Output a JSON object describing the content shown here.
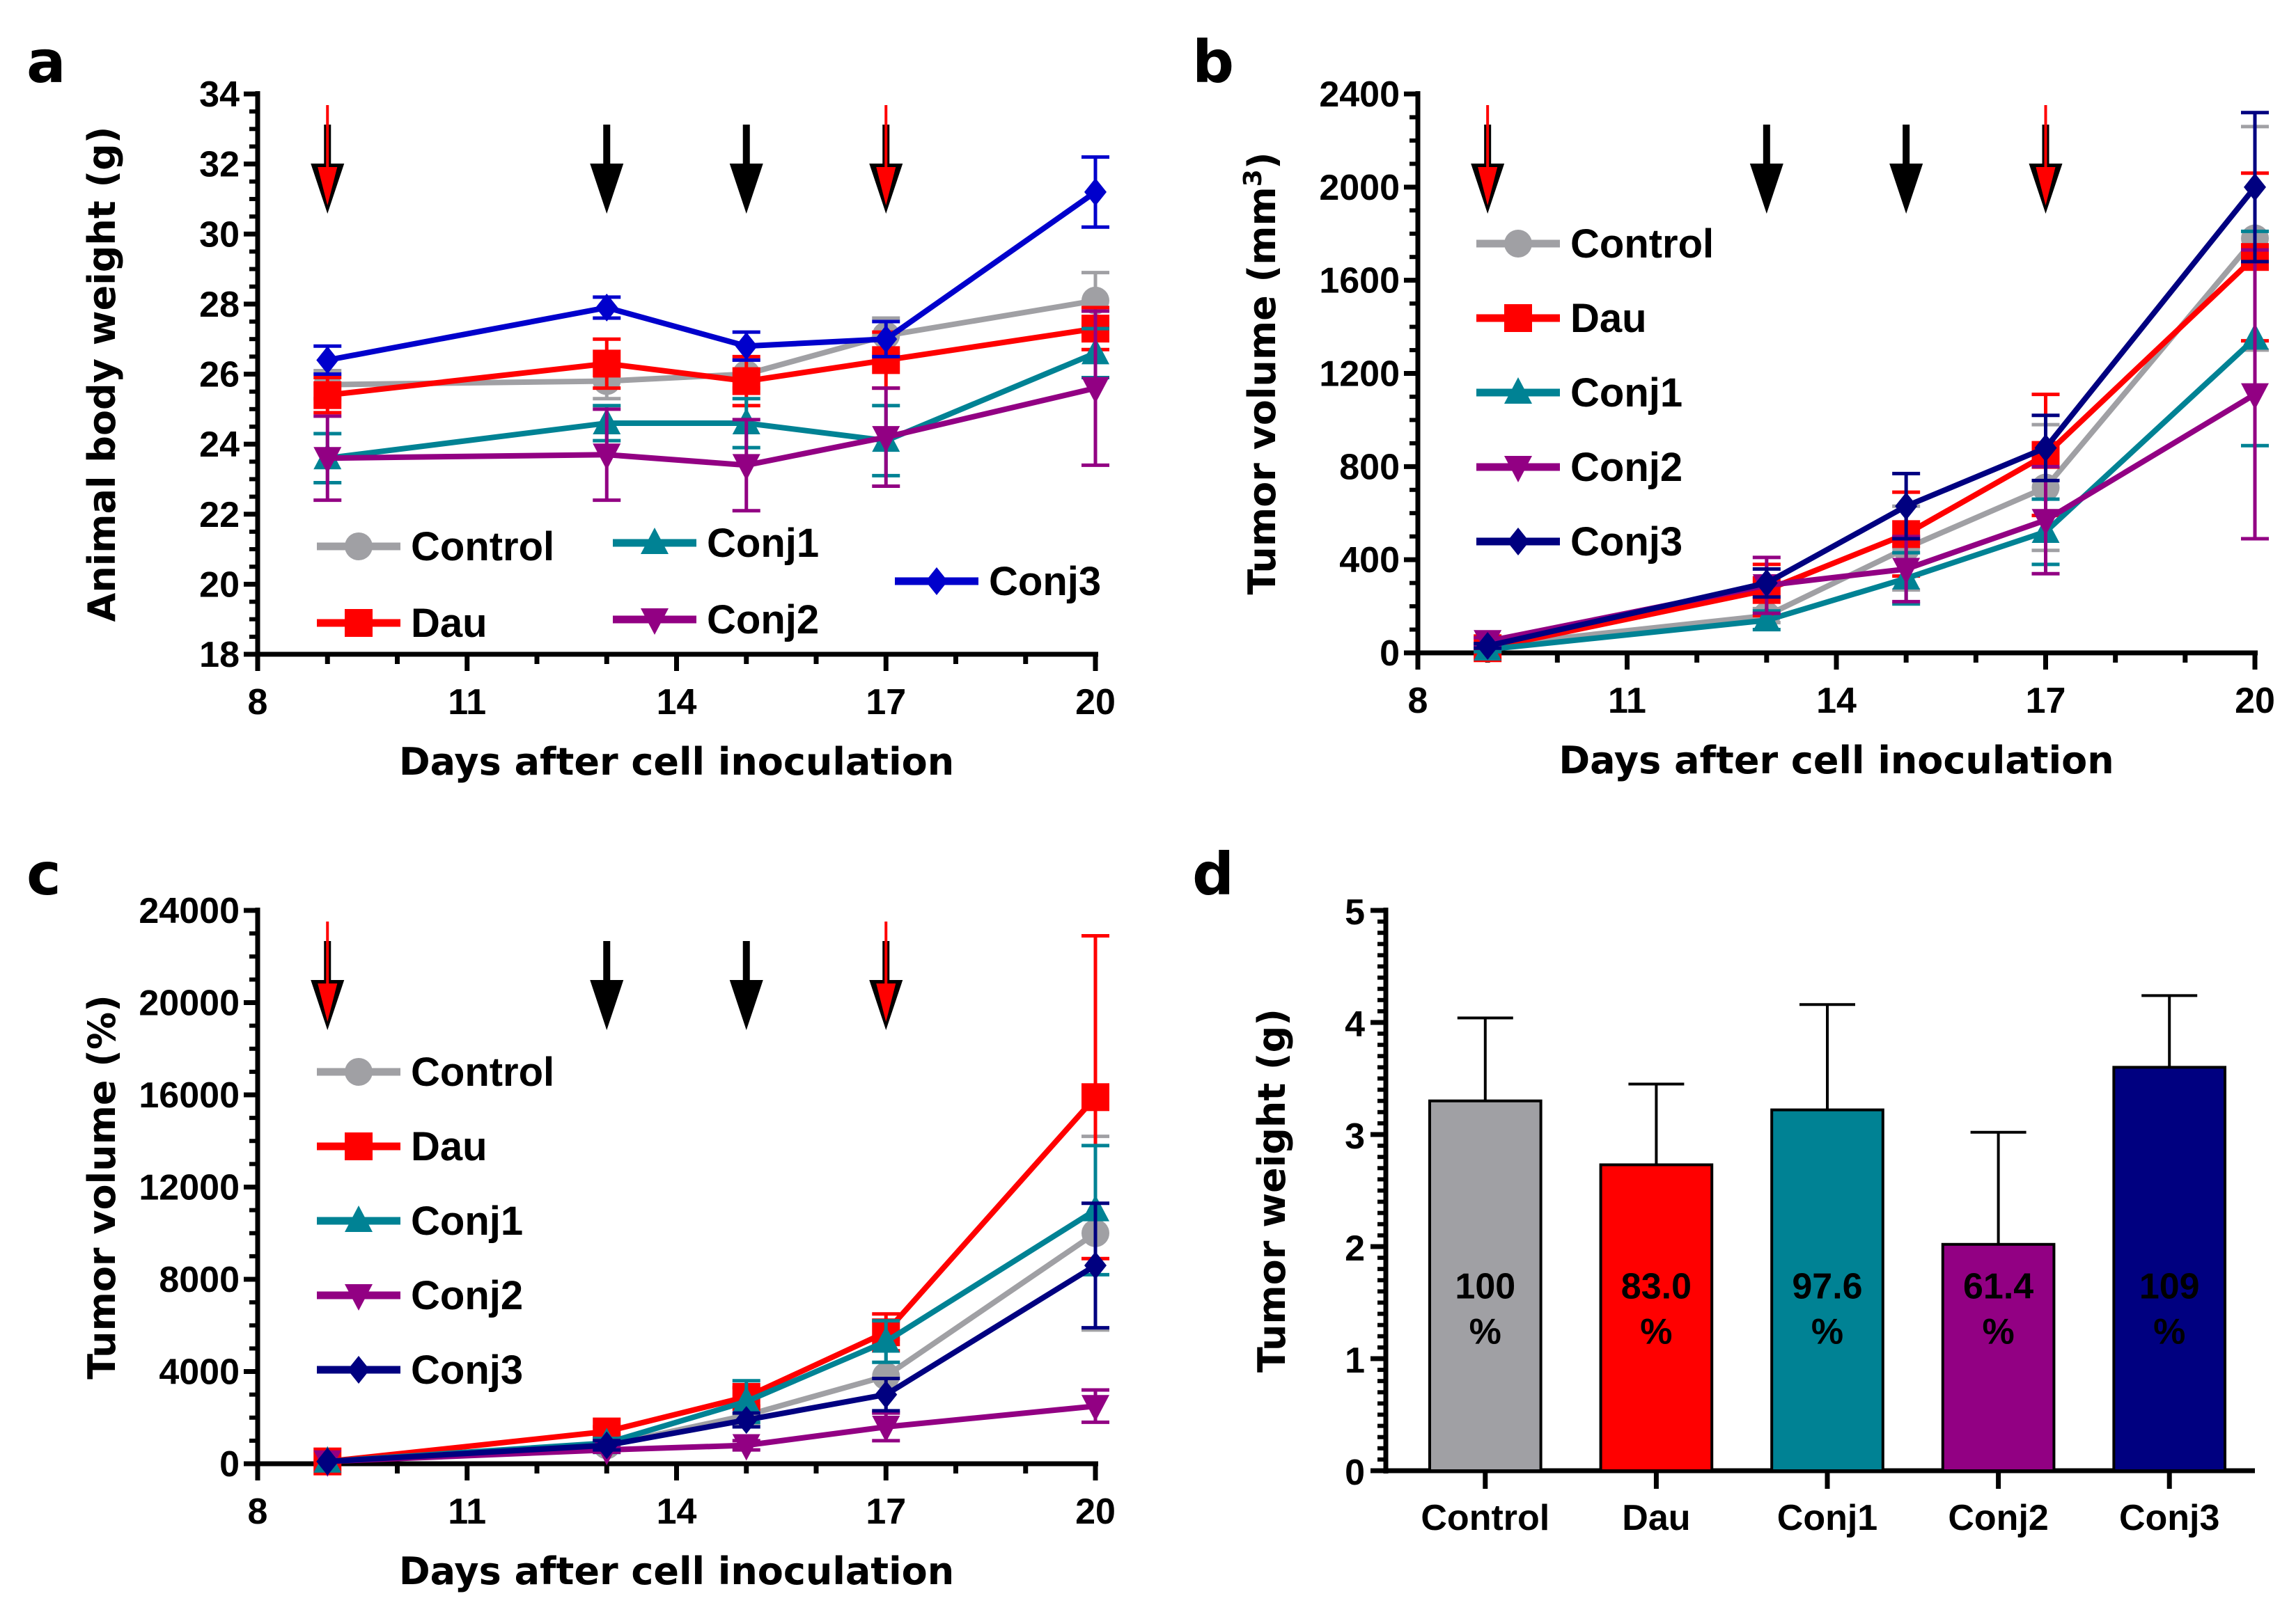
{
  "chart_data": [
    {
      "panel": "a",
      "type": "line",
      "xlabel": "Days after cell inoculation",
      "ylabel": "Animal body weight (g)",
      "xlim": [
        8,
        20
      ],
      "ylim": [
        18,
        34
      ],
      "xticks": [
        8,
        11,
        14,
        17,
        20
      ],
      "yticks": [
        18,
        20,
        22,
        24,
        26,
        28,
        30,
        32,
        34
      ],
      "x": [
        9,
        13,
        15,
        17,
        20
      ],
      "treatment_arrows": [
        {
          "day": 9,
          "color": "red"
        },
        {
          "day": 13,
          "color": "black"
        },
        {
          "day": 15,
          "color": "black"
        },
        {
          "day": 17,
          "color": "red"
        }
      ],
      "legend": "bottom-left",
      "series": [
        {
          "name": "Control",
          "color": "#A0A0A4",
          "marker": "circle",
          "values": [
            25.7,
            25.8,
            26.0,
            27.1,
            28.1
          ],
          "errors": [
            0.4,
            0.5,
            0.4,
            0.5,
            0.8
          ]
        },
        {
          "name": "Dau",
          "color": "#FF0000",
          "marker": "square",
          "values": [
            25.4,
            26.3,
            25.8,
            26.4,
            27.3
          ],
          "errors": [
            0.5,
            0.7,
            0.7,
            0.8,
            0.6
          ]
        },
        {
          "name": "Conj1",
          "color": "#008294",
          "marker": "triangle-up",
          "values": [
            23.6,
            24.6,
            24.6,
            24.1,
            26.6
          ],
          "errors": [
            0.7,
            0.5,
            0.7,
            1.0,
            0.7
          ]
        },
        {
          "name": "Conj2",
          "color": "#920083",
          "marker": "triangle-down",
          "values": [
            23.6,
            23.7,
            23.4,
            24.2,
            25.6
          ],
          "errors": [
            1.2,
            1.3,
            1.3,
            1.4,
            2.2
          ]
        },
        {
          "name": "Conj3",
          "color": "#0000CC",
          "marker": "diamond",
          "values": [
            26.4,
            27.9,
            26.8,
            27.0,
            31.2
          ],
          "errors": [
            0.4,
            0.3,
            0.4,
            0.5,
            1.0
          ]
        }
      ]
    },
    {
      "panel": "b",
      "type": "line",
      "xlabel": "Days after cell inoculation",
      "ylabel": "Tumor volume (mm",
      "ylabel_sup": "3",
      "ylabel_end": ")",
      "xlim": [
        8,
        20
      ],
      "ylim": [
        0,
        2400
      ],
      "xticks": [
        8,
        11,
        14,
        17,
        20
      ],
      "yticks": [
        0,
        400,
        800,
        1200,
        1600,
        2000,
        2400
      ],
      "x": [
        9,
        13,
        15,
        17,
        20
      ],
      "treatment_arrows": [
        {
          "day": 9,
          "color": "red"
        },
        {
          "day": 13,
          "color": "black"
        },
        {
          "day": 15,
          "color": "black"
        },
        {
          "day": 17,
          "color": "red"
        }
      ],
      "legend": "upper-left",
      "series": [
        {
          "name": "Control",
          "color": "#A0A0A4",
          "marker": "circle",
          "values": [
            30,
            160,
            450,
            710,
            1780
          ],
          "errors": [
            10,
            30,
            180,
            270,
            480
          ]
        },
        {
          "name": "Dau",
          "color": "#FF0000",
          "marker": "square",
          "values": [
            20,
            270,
            510,
            850,
            1700
          ],
          "errors": [
            10,
            110,
            180,
            260,
            360
          ]
        },
        {
          "name": "Conj1",
          "color": "#008294",
          "marker": "triangle-up",
          "values": [
            15,
            140,
            320,
            520,
            1350
          ],
          "errors": [
            10,
            40,
            110,
            140,
            460
          ]
        },
        {
          "name": "Conj2",
          "color": "#920083",
          "marker": "triangle-down",
          "values": [
            50,
            290,
            360,
            570,
            1110
          ],
          "errors": [
            15,
            120,
            140,
            230,
            620
          ]
        },
        {
          "name": "Conj3",
          "color": "#000080",
          "marker": "diamond",
          "values": [
            30,
            300,
            630,
            880,
            2000
          ],
          "errors": [
            10,
            60,
            140,
            140,
            320
          ]
        }
      ]
    },
    {
      "panel": "c",
      "type": "line",
      "xlabel": "Days after cell inoculation",
      "ylabel": "Tumor volume (%)",
      "xlim": [
        8,
        20
      ],
      "ylim": [
        0,
        24000
      ],
      "xticks": [
        8,
        11,
        14,
        17,
        20
      ],
      "yticks": [
        0,
        4000,
        8000,
        12000,
        16000,
        20000,
        24000
      ],
      "x": [
        9,
        13,
        15,
        17,
        20
      ],
      "treatment_arrows": [
        {
          "day": 9,
          "color": "red"
        },
        {
          "day": 13,
          "color": "black"
        },
        {
          "day": 15,
          "color": "black"
        },
        {
          "day": 17,
          "color": "red"
        }
      ],
      "legend": "upper-left",
      "series": [
        {
          "name": "Control",
          "color": "#A0A0A4",
          "marker": "circle",
          "values": [
            100,
            800,
            2100,
            3800,
            10000
          ],
          "errors": [
            0,
            200,
            400,
            1600,
            4200
          ]
        },
        {
          "name": "Dau",
          "color": "#FF0000",
          "marker": "square",
          "values": [
            100,
            1400,
            2900,
            5700,
            15900
          ],
          "errors": [
            0,
            200,
            400,
            800,
            7000
          ]
        },
        {
          "name": "Conj1",
          "color": "#008294",
          "marker": "triangle-up",
          "values": [
            100,
            900,
            2700,
            5300,
            11000
          ],
          "errors": [
            0,
            200,
            900,
            900,
            2800
          ]
        },
        {
          "name": "Conj2",
          "color": "#920083",
          "marker": "triangle-down",
          "values": [
            100,
            600,
            800,
            1600,
            2500
          ],
          "errors": [
            0,
            100,
            200,
            600,
            700
          ]
        },
        {
          "name": "Conj3",
          "color": "#000080",
          "marker": "diamond",
          "values": [
            100,
            800,
            1900,
            3000,
            8600
          ],
          "errors": [
            0,
            200,
            300,
            700,
            2700
          ]
        }
      ]
    },
    {
      "panel": "d",
      "type": "bar",
      "xlabel": "",
      "ylabel": "Tumor weight (g)",
      "ylim": [
        0,
        5
      ],
      "yticks": [
        0,
        1,
        2,
        3,
        4,
        5
      ],
      "categories": [
        "Control",
        "Dau",
        "Conj1",
        "Conj2",
        "Conj3"
      ],
      "values": [
        3.3,
        2.73,
        3.22,
        2.02,
        3.6
      ],
      "errors": [
        0.74,
        0.72,
        0.94,
        1.0,
        0.64
      ],
      "colors": [
        "#A0A0A4",
        "#FF0000",
        "#008294",
        "#920083",
        "#000080"
      ],
      "data_labels": [
        {
          "value": "100",
          "unit": "%"
        },
        {
          "value": "83.0",
          "unit": "%"
        },
        {
          "value": "97.6",
          "unit": "%"
        },
        {
          "value": "61.4",
          "unit": "%"
        },
        {
          "value": "109",
          "unit": "%"
        }
      ]
    }
  ],
  "panel_labels": [
    "a",
    "b",
    "c",
    "d"
  ]
}
